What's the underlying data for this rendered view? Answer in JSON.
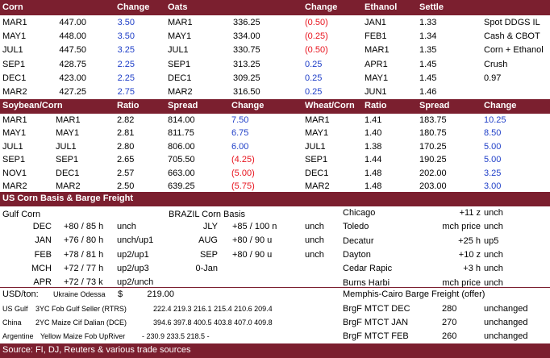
{
  "sec1": {
    "headers": [
      "Corn",
      "Change",
      "Oats",
      "Change",
      "Ethanol",
      "Settle"
    ],
    "rows": [
      {
        "c1": "MAR1",
        "c2": "447.00",
        "c3": "3.50",
        "c4": "MAR1",
        "c5": "336.25",
        "c6": "(0.50)",
        "c7": "JAN1",
        "c8": "1.33",
        "c9": "Spot DDGS IL"
      },
      {
        "c1": "MAY1",
        "c2": "448.00",
        "c3": "3.50",
        "c4": "MAY1",
        "c5": "334.00",
        "c6": "(0.25)",
        "c7": "FEB1",
        "c8": "1.34",
        "c9": "Cash & CBOT"
      },
      {
        "c1": "JUL1",
        "c2": "447.50",
        "c3": "3.25",
        "c4": "JUL1",
        "c5": "330.75",
        "c6": "(0.50)",
        "c7": "MAR1",
        "c8": "1.35",
        "c9": "Corn + Ethanol"
      },
      {
        "c1": "SEP1",
        "c2": "428.75",
        "c3": "2.25",
        "c4": "SEP1",
        "c5": "313.25",
        "c6": "0.25",
        "c7": "APR1",
        "c8": "1.45",
        "c9": "Crush"
      },
      {
        "c1": "DEC1",
        "c2": "423.00",
        "c3": "2.25",
        "c4": "DEC1",
        "c5": "309.25",
        "c6": "0.25",
        "c7": "MAY1",
        "c8": "1.45",
        "c9": "0.97"
      },
      {
        "c1": "MAR2",
        "c2": "427.25",
        "c3": "2.75",
        "c4": "MAR2",
        "c5": "316.50",
        "c6": "0.25",
        "c7": "JUN1",
        "c8": "1.46",
        "c9": ""
      }
    ]
  },
  "sec2": {
    "headers": [
      "Soybean/Corn",
      "Ratio",
      "Spread",
      "Change",
      "Wheat/Corn",
      "Ratio",
      "Spread",
      "Change"
    ],
    "rows": [
      {
        "c1": "MAR1",
        "c2": "MAR1",
        "c3": "2.82",
        "c4": "814.00",
        "c5": "7.50",
        "c6": "MAR1",
        "c7": "1.41",
        "c8": "183.75",
        "c9": "10.25"
      },
      {
        "c1": "MAY1",
        "c2": "MAY1",
        "c3": "2.81",
        "c4": "811.75",
        "c5": "6.75",
        "c6": "MAY1",
        "c7": "1.40",
        "c8": "180.75",
        "c9": "8.50"
      },
      {
        "c1": "JUL1",
        "c2": "JUL1",
        "c3": "2.80",
        "c4": "806.00",
        "c5": "6.00",
        "c6": "JUL1",
        "c7": "1.38",
        "c8": "170.25",
        "c9": "5.00"
      },
      {
        "c1": "SEP1",
        "c2": "SEP1",
        "c3": "2.65",
        "c4": "705.50",
        "c5": "(4.25)",
        "c6": "SEP1",
        "c7": "1.44",
        "c8": "190.25",
        "c9": "5.00"
      },
      {
        "c1": "NOV1",
        "c2": "DEC1",
        "c3": "2.57",
        "c4": "663.00",
        "c5": "(5.00)",
        "c6": "DEC1",
        "c7": "1.48",
        "c8": "202.00",
        "c9": "3.25"
      },
      {
        "c1": "MAR2",
        "c2": "MAR2",
        "c3": "2.50",
        "c4": "639.25",
        "c5": "(5.75)",
        "c6": "MAR2",
        "c7": "1.48",
        "c8": "203.00",
        "c9": "3.00"
      }
    ]
  },
  "sec3": {
    "title": "US Corn Basis & Barge Freight",
    "gulf_label": "Gulf Corn",
    "brazil_label": "BRAZIL Corn Basis",
    "gulf_rows": [
      {
        "m": "DEC",
        "v": "+80 / 85 h",
        "s": "unch"
      },
      {
        "m": "JAN",
        "v": "+76 / 80 h",
        "s": "unch/up1"
      },
      {
        "m": "FEB",
        "v": "+78 / 81 h",
        "s": "up2/up1"
      },
      {
        "m": "MCH",
        "v": "+72 / 77 h",
        "s": "up2/up3"
      },
      {
        "m": "APR",
        "v": "+72 / 73 k",
        "s": "up2/unch"
      }
    ],
    "brazil_rows": [
      {
        "m": "JLY",
        "v": "+85 / 100 n",
        "s": "unch"
      },
      {
        "m": "AUG",
        "v": "+80 / 90 u",
        "s": "unch"
      },
      {
        "m": "SEP",
        "v": "+80 / 90 u",
        "s": "unch"
      },
      {
        "m": "0-Jan",
        "v": "",
        "s": ""
      }
    ],
    "right_rows": [
      {
        "loc": "Chicago",
        "v": "+11 z",
        "s": "unch"
      },
      {
        "loc": "Toledo",
        "v": "mch price",
        "s": "unch"
      },
      {
        "loc": "Decatur",
        "v": "+25 h",
        "s": "up5"
      },
      {
        "loc": "Dayton",
        "v": "+10 z",
        "s": "unch"
      },
      {
        "loc": "Cedar Rapic",
        "v": "+3 h",
        "s": "unch"
      },
      {
        "loc": "Burns Harbi",
        "v": "mch price",
        "s": "unch"
      }
    ],
    "usd_label": "USD/ton:",
    "odessa_label": "Ukraine Odessa",
    "odessa_cur": "$",
    "odessa_val": "219.00",
    "memphis_label": "Memphis-Cairo Barge Freight (offer)",
    "fob": [
      {
        "country": "US Gulf",
        "desc": "3YC Fob Gulf Seller (RTRS)",
        "vals": "222.4  219.3  216.1  215.4  210.6  209.4"
      },
      {
        "country": "China",
        "desc": "2YC Maize Cif Dalian (DCE)",
        "vals": "394.6  397.8  400.5  403.8  407.0  409.8"
      },
      {
        "country": "Argentine",
        "desc": "Yellow Maize Fob UpRiver",
        "vals": "-  230.9  233.5  218.5  -"
      }
    ],
    "barge": [
      {
        "label": "BrgF MTCT DEC",
        "v": "280",
        "s": "unchanged"
      },
      {
        "label": "BrgF MTCT JAN",
        "v": "270",
        "s": "unchanged"
      },
      {
        "label": "BrgF MTCT FEB",
        "v": "260",
        "s": "unchanged"
      }
    ],
    "source": "Source: FI, DJ, Reuters & various trade sources"
  },
  "colors": {
    "band": "#7b1f2f",
    "negative": "#e8141e",
    "positive": "#1f3fc8"
  }
}
